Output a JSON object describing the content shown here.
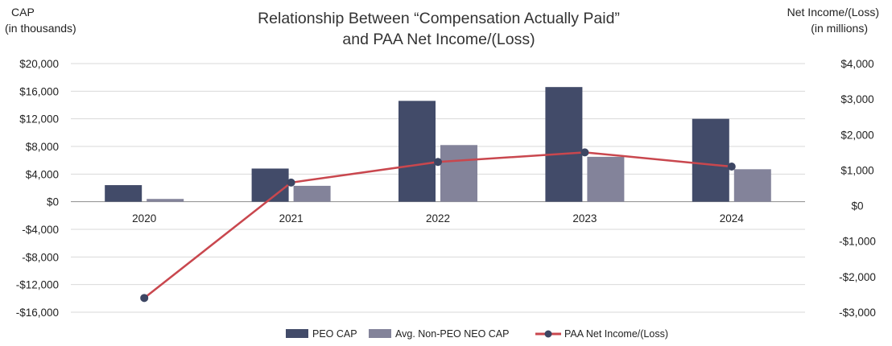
{
  "chart_data": {
    "type": "bar",
    "title_line1": "Relationship Between “Compensation Actually Paid”",
    "title_line2": "and PAA Net Income/(Loss)",
    "left_axis": {
      "label_line1": "CAP",
      "label_line2": "(in thousands)",
      "ticks": [
        20000,
        16000,
        12000,
        8000,
        4000,
        0,
        -4000,
        -8000,
        -12000,
        -16000
      ],
      "tick_labels": [
        "$20,000",
        "$16,000",
        "$12,000",
        "$8,000",
        "$4,000",
        "$0",
        "-$4,000",
        "-$8,000",
        "-$12,000",
        "-$16,000"
      ],
      "ylim": [
        -16000,
        20000
      ]
    },
    "right_axis": {
      "label_line1": "Net Income/(Loss)",
      "label_line2": "(in millions)",
      "ticks": [
        4000,
        3000,
        2000,
        1000,
        0,
        -1000,
        -2000,
        -3000
      ],
      "tick_labels": [
        "$4,000",
        "$3,000",
        "$2,000",
        "$1,000",
        "$0",
        "-$1,000",
        "-$2,000",
        "-$3,000"
      ],
      "ylim": [
        -3000,
        4000
      ]
    },
    "categories": [
      "2020",
      "2021",
      "2022",
      "2023",
      "2024"
    ],
    "series": [
      {
        "name": "PEO CAP",
        "kind": "bar",
        "axis": "left",
        "color": "#424b69",
        "values": [
          2400,
          4800,
          14600,
          16600,
          12000
        ]
      },
      {
        "name": "Avg. Non-PEO NEO CAP",
        "kind": "bar",
        "axis": "left",
        "color": "#83839a",
        "values": [
          400,
          2300,
          8200,
          6500,
          4700
        ]
      },
      {
        "name": "PAA Net Income/(Loss)",
        "kind": "line",
        "axis": "right",
        "color": "#c9474e",
        "marker_color": "#3d4663",
        "values": [
          -2600,
          650,
          1230,
          1500,
          1100
        ]
      }
    ],
    "grid": true,
    "legend_position": "bottom"
  }
}
